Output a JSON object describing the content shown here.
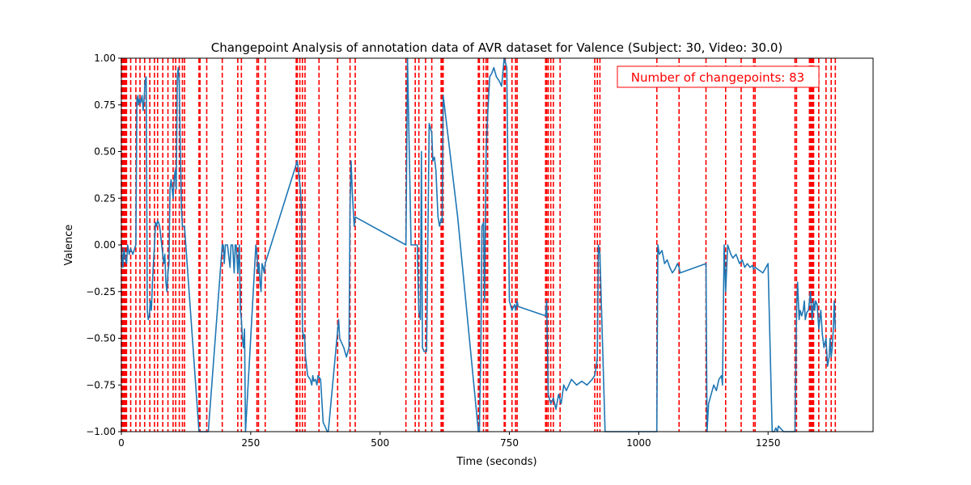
{
  "chart_data": {
    "type": "line",
    "title": "Changepoint Analysis of annotation data of AVR dataset for Valence (Subject: 30, Video: 30.0)",
    "xlabel": "Time (seconds)",
    "ylabel": "Valence",
    "xlim": [
      0,
      1453
    ],
    "ylim": [
      -1.0,
      1.0
    ],
    "xticks": [
      0,
      250,
      500,
      750,
      1000,
      1250
    ],
    "yticks": [
      -1.0,
      -0.75,
      -0.5,
      -0.25,
      0.0,
      0.25,
      0.5,
      0.75,
      1.0
    ],
    "xtick_labels": [
      "0",
      "250",
      "500",
      "750",
      "1000",
      "1250"
    ],
    "ytick_labels": [
      "−1.00",
      "−0.75",
      "−0.50",
      "−0.25",
      "0.00",
      "0.25",
      "0.50",
      "0.75",
      "1.00"
    ],
    "annotation": "Number of changepoints: 83",
    "colors": {
      "series": "#1f77b4",
      "changepoint": "#ff0000",
      "annotation": "#ff0000"
    },
    "series": [
      {
        "name": "Valence",
        "x": [
          0,
          3,
          5,
          8,
          10,
          12,
          15,
          18,
          22,
          28,
          30,
          32,
          33,
          35,
          37,
          40,
          42,
          44,
          46,
          48,
          50,
          52,
          54,
          56,
          58,
          60,
          62,
          64,
          66,
          68,
          70,
          72,
          74,
          76,
          78,
          80,
          82,
          84,
          86,
          88,
          90,
          92,
          94,
          96,
          98,
          100,
          102,
          104,
          106,
          108,
          110,
          112,
          114,
          116,
          118,
          120,
          122,
          150,
          153,
          155,
          165,
          168,
          195,
          197,
          199,
          201,
          205,
          210,
          212,
          215,
          218,
          220,
          222,
          225,
          228,
          230,
          232,
          234,
          236,
          238,
          240,
          260,
          262,
          264,
          266,
          268,
          270,
          272,
          274,
          276,
          278,
          340,
          342,
          344,
          346,
          348,
          350,
          352,
          354,
          356,
          360,
          365,
          368,
          370,
          372,
          375,
          378,
          380,
          385,
          390,
          395,
          398,
          400,
          420,
          422,
          425,
          430,
          435,
          440,
          442,
          444,
          446,
          448,
          450,
          452,
          550,
          553,
          560,
          570,
          572,
          575,
          578,
          580,
          582,
          585,
          590,
          595,
          600,
          602,
          605,
          608,
          612,
          615,
          618,
          620,
          622,
          650,
          690,
          692,
          695,
          697,
          700,
          702,
          705,
          708,
          712,
          716,
          720,
          725,
          730,
          735,
          740,
          742,
          745,
          750,
          755,
          760,
          762,
          765,
          767,
          820,
          822,
          825,
          830,
          835,
          840,
          845,
          850,
          855,
          860,
          870,
          880,
          890,
          900,
          910,
          915,
          918,
          920,
          922,
          925,
          935,
          1035,
          1037,
          1040,
          1045,
          1050,
          1055,
          1060,
          1065,
          1070,
          1075,
          1078,
          1080,
          1130,
          1132,
          1135,
          1140,
          1145,
          1150,
          1155,
          1160,
          1162,
          1165,
          1168,
          1172,
          1178,
          1182,
          1188,
          1195,
          1200,
          1205,
          1210,
          1215,
          1220,
          1222,
          1225,
          1240,
          1250,
          1258,
          1262,
          1265,
          1268,
          1270,
          1280,
          1290,
          1295,
          1300,
          1302,
          1305,
          1307,
          1310,
          1312,
          1315,
          1318,
          1320,
          1322,
          1325,
          1328,
          1330,
          1332,
          1335,
          1338,
          1340,
          1342,
          1345,
          1348,
          1352,
          1355,
          1358,
          1362,
          1365,
          1368,
          1370,
          1372,
          1374,
          1376,
          1378,
          1380
        ],
        "values": [
          0.0,
          -0.12,
          -0.02,
          -0.08,
          -0.1,
          0.0,
          -0.05,
          -0.02,
          -0.05,
          0.0,
          0.78,
          0.8,
          0.75,
          0.78,
          0.76,
          0.8,
          0.72,
          0.78,
          0.88,
          0.9,
          -0.35,
          -0.4,
          -0.38,
          -0.3,
          -0.35,
          -0.2,
          -0.1,
          0.0,
          0.12,
          0.1,
          0.13,
          0.12,
          0.1,
          0.05,
          0.0,
          -0.05,
          -0.1,
          -0.05,
          -0.2,
          -0.25,
          -0.15,
          -0.1,
          0.3,
          0.35,
          0.3,
          0.25,
          0.35,
          0.4,
          0.3,
          0.9,
          0.95,
          0.85,
          0.5,
          0.2,
          0.1,
          0.1,
          0.1,
          -1.0,
          -1.0,
          -1.0,
          -1.0,
          -1.0,
          0.0,
          0.0,
          -0.1,
          0.0,
          0.0,
          -0.12,
          0.0,
          0.0,
          -0.15,
          0.0,
          0.0,
          -0.15,
          0.0,
          -0.35,
          -0.4,
          -0.5,
          -0.55,
          -0.45,
          -1.0,
          0.0,
          -0.05,
          -0.15,
          -0.1,
          -0.2,
          -0.25,
          -0.1,
          -0.12,
          -0.15,
          -0.1,
          0.45,
          0.4,
          0.35,
          0.3,
          0.2,
          -0.45,
          -0.5,
          -0.48,
          -0.6,
          -0.7,
          -0.72,
          -0.75,
          -0.7,
          -0.73,
          -0.72,
          -0.75,
          -0.7,
          -0.72,
          -0.95,
          -0.98,
          -1.0,
          -1.0,
          -0.4,
          -0.5,
          -0.52,
          -0.55,
          -0.6,
          -0.55,
          0.2,
          0.45,
          0.3,
          0.2,
          0.1,
          0.15,
          0.0,
          1.0,
          0.0,
          0.0,
          0.0,
          -0.35,
          -0.4,
          0.5,
          -0.55,
          -0.57,
          -0.57,
          0.65,
          0.6,
          0.45,
          0.47,
          0.4,
          0.15,
          0.1,
          0.14,
          0.12,
          0.8,
          0.15,
          -1.0,
          -1.0,
          -0.5,
          0.1,
          0.12,
          -0.3,
          0.5,
          0.7,
          0.9,
          0.92,
          0.95,
          0.9,
          0.88,
          0.85,
          1.0,
          0.98,
          0.95,
          -0.3,
          -0.35,
          -0.32,
          -0.35,
          -0.3,
          -0.33,
          -0.38,
          -0.3,
          -0.8,
          -0.85,
          -0.82,
          -0.88,
          -0.8,
          -0.85,
          -0.75,
          -0.78,
          -0.72,
          -0.75,
          -0.73,
          -0.75,
          -0.72,
          -0.7,
          -0.65,
          -0.6,
          0.0,
          -0.05,
          -1.0,
          -1.0,
          0.0,
          -0.05,
          -0.03,
          -0.1,
          -0.08,
          -0.12,
          -0.15,
          -0.13,
          -0.1,
          -0.12,
          -0.15,
          -0.1,
          -1.0,
          -0.85,
          -0.8,
          -0.75,
          -0.78,
          -0.72,
          -0.7,
          -0.75,
          0.0,
          -0.25,
          0.0,
          -0.05,
          -0.07,
          -0.05,
          -0.1,
          -0.08,
          -0.12,
          -0.1,
          -0.12,
          -0.11,
          -0.13,
          -0.12,
          -0.15,
          -0.1,
          -1.0,
          -1.0,
          -0.98,
          -1.0,
          -0.97,
          -1.0,
          -1.0,
          -1.0,
          -1.0,
          -1.0,
          -0.35,
          -0.2,
          -0.4,
          -0.35,
          -0.38,
          -0.35,
          -0.3,
          -0.4,
          -0.36,
          -0.35,
          -0.3,
          -0.25,
          -0.4,
          -0.3,
          -0.35,
          -0.3,
          -0.32,
          -0.45,
          -0.35,
          -0.48,
          -0.55,
          -0.5,
          -0.65,
          -0.6,
          -0.5,
          -0.6,
          -0.55,
          -0.45,
          -0.3,
          -0.45
        ]
      }
    ],
    "changepoints": [
      0,
      2,
      4,
      6,
      8,
      10,
      18,
      28,
      36,
      45,
      55,
      64,
      70,
      80,
      90,
      100,
      105,
      112,
      118,
      122,
      150,
      152,
      165,
      195,
      225,
      232,
      262,
      265,
      278,
      338,
      340,
      345,
      350,
      355,
      382,
      418,
      442,
      452,
      550,
      568,
      575,
      588,
      600,
      618,
      620,
      622,
      690,
      692,
      700,
      705,
      708,
      740,
      742,
      755,
      762,
      765,
      820,
      822,
      825,
      830,
      835,
      848,
      915,
      920,
      925,
      1035,
      1078,
      1130,
      1168,
      1198,
      1222,
      1225,
      1302,
      1305,
      1330,
      1332,
      1334,
      1336,
      1338,
      1348,
      1362,
      1372,
      1380
    ]
  }
}
